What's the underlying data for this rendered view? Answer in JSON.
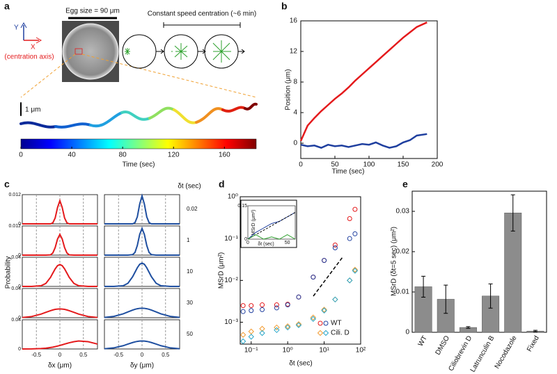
{
  "chart_data": [
    {
      "type": "colorbar",
      "panel": "a",
      "axis_y": "Y",
      "axis_x": "X",
      "axis_note": "(centration axis)",
      "egg_size": "Egg size = 90 μm",
      "centration_label": "Constant speed centration (~6 min)",
      "scale_bar": "1 μm",
      "xlabel": "Time (sec)",
      "xlim": [
        0,
        185
      ],
      "xticks": [
        0,
        40,
        80,
        120,
        160
      ]
    },
    {
      "type": "line",
      "panel": "b",
      "xlabel": "Time (sec)",
      "ylabel": "Position (μm)",
      "x": [
        0,
        10,
        20,
        30,
        40,
        50,
        60,
        70,
        80,
        90,
        100,
        110,
        120,
        130,
        140,
        150,
        160,
        170,
        185
      ],
      "series": [
        {
          "color": "#e41a1c",
          "values": [
            0.3,
            2.3,
            3.3,
            4.2,
            5.0,
            5.8,
            6.5,
            7.3,
            8.2,
            9.0,
            9.8,
            10.6,
            11.4,
            12.2,
            13.0,
            13.8,
            14.5,
            15.2,
            15.8
          ]
        },
        {
          "color": "#1f3f9f",
          "values": [
            -0.2,
            -0.4,
            -0.3,
            -0.6,
            -0.2,
            -0.4,
            -0.3,
            -0.5,
            -0.3,
            -0.1,
            -0.2,
            0.1,
            -0.3,
            -0.6,
            -0.4,
            0.1,
            0.4,
            1.0,
            1.2
          ]
        }
      ],
      "xlim": [
        0,
        200
      ],
      "xticks": [
        0,
        50,
        100,
        150,
        200
      ],
      "ylim": [
        -2,
        16
      ],
      "yticks": [
        0,
        4,
        8,
        12,
        16
      ]
    },
    {
      "type": "density-grid",
      "panel": "c",
      "ylabel": "Probability",
      "xlabels": [
        "δx (μm)",
        "δy (μm)"
      ],
      "row_header": "δt (sec)",
      "x": [
        -0.8,
        -0.6,
        -0.4,
        -0.3,
        -0.2,
        -0.15,
        -0.1,
        -0.05,
        0,
        0.05,
        0.1,
        0.15,
        0.2,
        0.3,
        0.4,
        0.6,
        0.8
      ],
      "xlim": [
        -0.8,
        0.8
      ],
      "xticks": [
        -0.5,
        0,
        0.5
      ],
      "rows": [
        {
          "dt": 0.02,
          "ylim": [
            0,
            0.012
          ],
          "yticks": [
            0,
            0.012
          ],
          "series": [
            {
              "color": "#e41a1c",
              "values": [
                0,
                0,
                0,
                0,
                0,
                0.0004,
                0.0024,
                0.0067,
                0.0095,
                0.0067,
                0.0024,
                0.0004,
                0,
                0,
                0,
                0,
                0
              ]
            },
            {
              "color": "#1f4fa0",
              "values": [
                0,
                0,
                0,
                0,
                0,
                0.0005,
                0.0029,
                0.0081,
                0.0115,
                0.0081,
                0.0029,
                0.0005,
                0,
                0,
                0,
                0,
                0
              ]
            }
          ]
        },
        {
          "dt": 1,
          "ylim": [
            0,
            0.012
          ],
          "yticks": [
            0,
            0.012
          ],
          "series": [
            {
              "color": "#e41a1c",
              "values": [
                0,
                0,
                0,
                0,
                0.0001,
                0.0009,
                0.0031,
                0.0066,
                0.0085,
                0.0066,
                0.0031,
                0.0009,
                0.0001,
                0,
                0,
                0,
                0
              ]
            },
            {
              "color": "#1f4fa0",
              "values": [
                0,
                0,
                0,
                0,
                0.0002,
                0.0011,
                0.004,
                0.0085,
                0.011,
                0.0085,
                0.004,
                0.0011,
                0.0002,
                0,
                0,
                0,
                0
              ]
            }
          ]
        },
        {
          "dt": 10,
          "ylim": [
            0,
            0.04
          ],
          "yticks": [
            0,
            0.04
          ],
          "series": [
            {
              "color": "#e41a1c",
              "values": [
                0,
                0,
                0.0009,
                0.004,
                0.0123,
                0.0182,
                0.024,
                0.0284,
                0.03,
                0.0284,
                0.024,
                0.0182,
                0.0123,
                0.004,
                0.0009,
                0,
                0
              ]
            },
            {
              "color": "#1f4fa0",
              "values": [
                0,
                0,
                0.0009,
                0.0043,
                0.0132,
                0.0194,
                0.0256,
                0.0303,
                0.032,
                0.0303,
                0.0256,
                0.0194,
                0.0132,
                0.0043,
                0.0009,
                0,
                0
              ]
            }
          ]
        },
        {
          "dt": 30,
          "ylim": [
            0,
            0.04
          ],
          "yticks": [
            0,
            0.04
          ],
          "series": [
            {
              "color": "#e41a1c",
              "values": [
                0.0003,
                0.0016,
                0.0049,
                0.0073,
                0.0096,
                0.0106,
                0.0114,
                0.0118,
                0.012,
                0.0118,
                0.0114,
                0.0106,
                0.0096,
                0.0073,
                0.0049,
                0.0016,
                0.0003
              ]
            },
            {
              "color": "#1f4fa0",
              "values": [
                0.0004,
                0.0018,
                0.0053,
                0.0079,
                0.0104,
                0.0115,
                0.0123,
                0.0128,
                0.013,
                0.0128,
                0.0123,
                0.0115,
                0.0104,
                0.0079,
                0.0053,
                0.0018,
                0.0004
              ]
            }
          ]
        },
        {
          "dt": 50,
          "ylim": [
            0,
            0.04
          ],
          "yticks": [
            0,
            0.04
          ],
          "series": [
            {
              "color": "#e41a1c",
              "values": [
                0,
                0.0001,
                0.0006,
                0.0011,
                0.002,
                0.0025,
                0.0032,
                0.004,
                0.0048,
                0.0057,
                0.0067,
                0.0076,
                0.0085,
                0.01,
                0.0109,
                0.01,
                0.0067
              ]
            },
            {
              "color": "#1f4fa0",
              "values": [
                0.0003,
                0.0015,
                0.0045,
                0.0067,
                0.0088,
                0.0097,
                0.0104,
                0.0108,
                0.011,
                0.0108,
                0.0104,
                0.0097,
                0.0088,
                0.0067,
                0.0045,
                0.0015,
                0.0003
              ]
            }
          ]
        }
      ]
    },
    {
      "type": "scatter",
      "panel": "d",
      "xlabel": "δt (sec)",
      "ylabel": "MSrD (μm²)",
      "log_x": true,
      "log_y": true,
      "legend": "lower right",
      "x": [
        0.06,
        0.1,
        0.2,
        0.5,
        1,
        2,
        5,
        10,
        20,
        50,
        70
      ],
      "series": [
        {
          "name": "WT",
          "color": "#e41a1c",
          "marker": "circle",
          "values": [
            0.0025,
            0.0025,
            0.0026,
            0.0026,
            0.0027,
            0.004,
            0.012,
            0.03,
            0.07,
            0.3,
            0.5
          ]
        },
        {
          "color": "#1f3f9f",
          "marker": "circle",
          "values": [
            0.0018,
            0.0019,
            0.002,
            0.0022,
            0.0026,
            0.004,
            0.012,
            0.03,
            0.06,
            0.1,
            0.13
          ]
        },
        {
          "name": "Cili. D",
          "color": "#f39c32",
          "marker": "diamond",
          "values": [
            0.0005,
            0.0006,
            0.0007,
            0.00075,
            0.0008,
            0.0009,
            0.0013,
            0.002,
            0.0035,
            0.01,
            0.018
          ]
        },
        {
          "color": "#2aa7c9",
          "marker": "diamond",
          "values": [
            0.00035,
            0.00045,
            0.00055,
            0.00065,
            0.00075,
            0.00085,
            0.0012,
            0.0019,
            0.0035,
            0.01,
            0.017
          ]
        }
      ],
      "xlim": [
        0.05,
        100
      ],
      "xticks": [
        {
          "value": 0.1,
          "label": "10⁻¹"
        },
        {
          "value": 1,
          "label": "10⁰"
        },
        {
          "value": 10,
          "label": "10¹"
        },
        {
          "value": 100,
          "label": "10²"
        }
      ],
      "ylim": [
        0.0003,
        1
      ],
      "yticks": [
        {
          "value": 0.001,
          "label": "10⁻³"
        },
        {
          "value": 0.01,
          "label": "10⁻²"
        },
        {
          "value": 0.1,
          "label": "10⁻¹"
        },
        {
          "value": 1,
          "label": "10⁰"
        }
      ],
      "inset": {
        "xlabel": "δt (sec)",
        "ylabel": "MSrD (μm²)",
        "x": [
          0,
          10,
          20,
          30,
          40,
          50,
          60
        ],
        "series": [
          {
            "color": "#1f3f9f",
            "values": [
              0,
              0.03,
              0.05,
              0.07,
              0.08,
              0.1,
              0.12
            ]
          },
          {
            "color": "#000000",
            "dashed": true,
            "values": [
              0,
              0.02,
              0.04,
              0.06,
              0.08,
              0.1,
              0.12
            ]
          },
          {
            "color": "#2ca02c",
            "values": [
              0,
              0.02,
              0,
              0.01,
              0,
              0.02,
              0
            ]
          }
        ],
        "xlim": [
          0,
          60
        ],
        "xticks": [
          0,
          50
        ],
        "ylim": [
          0,
          0.15
        ],
        "yticks": [
          0,
          0.15
        ]
      }
    },
    {
      "type": "bar",
      "panel": "e",
      "ylabel": "MSrD (δt=5 sec) (μm²)",
      "categories": [
        "WT",
        "DMSO",
        "Ciliobrevin D",
        "Latrunculin B",
        "Nocodazole",
        "Fixed"
      ],
      "values": [
        0.0113,
        0.0082,
        0.0012,
        0.009,
        0.0296,
        0.0003
      ],
      "errors": [
        0.0026,
        0.0035,
        0.0002,
        0.003,
        0.0045,
        0.0002
      ],
      "color": "#8c8c8c",
      "ylim": [
        0,
        0.035
      ],
      "yticks": [
        0,
        0.01,
        0.02,
        0.03
      ]
    }
  ]
}
